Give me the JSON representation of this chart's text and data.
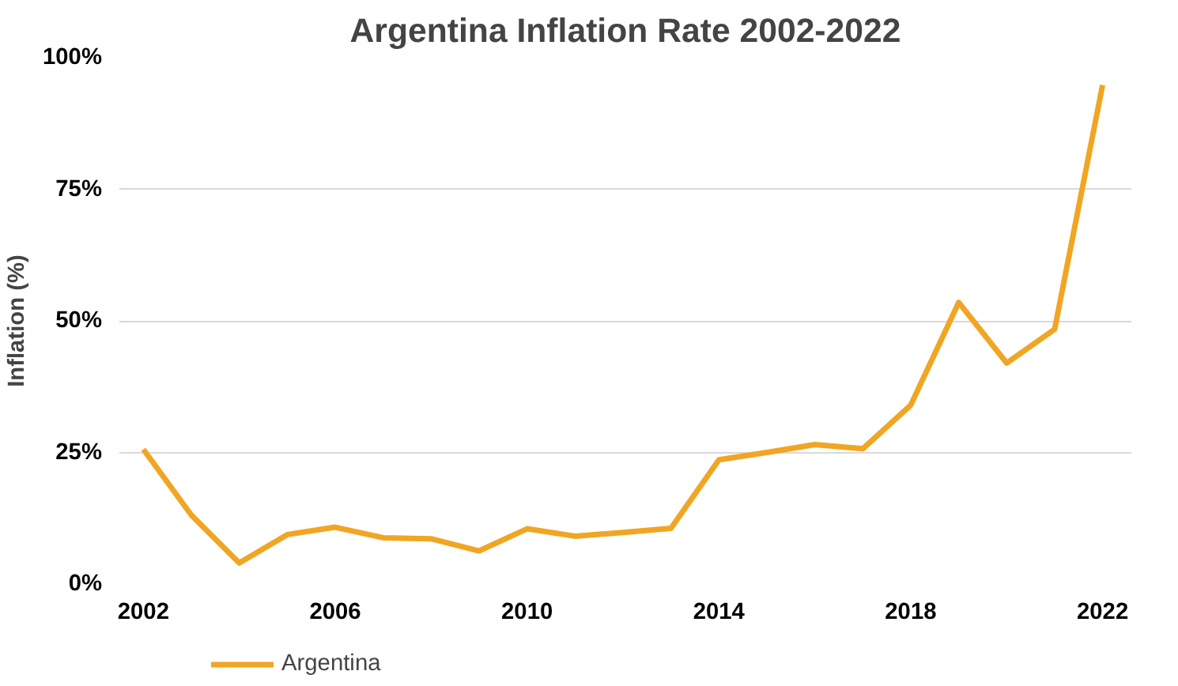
{
  "chart_data": {
    "type": "line",
    "title": "Argentina Inflation Rate 2002-2022",
    "ylabel": "Inflation (%)",
    "x": [
      2002,
      2003,
      2004,
      2005,
      2006,
      2007,
      2008,
      2009,
      2010,
      2011,
      2012,
      2013,
      2014,
      2015,
      2016,
      2017,
      2018,
      2019,
      2020,
      2021,
      2022
    ],
    "series": [
      {
        "name": "Argentina",
        "color": "#f0a623",
        "values": [
          25.6,
          13.1,
          4.0,
          9.4,
          10.8,
          8.8,
          8.6,
          6.3,
          10.5,
          9.1,
          9.8,
          10.6,
          23.6,
          25.0,
          26.5,
          25.7,
          34.0,
          53.5,
          42.0,
          48.4,
          94.8
        ]
      }
    ],
    "xlim": [
      2001.5,
      2022.6
    ],
    "xticks": [
      2002,
      2006,
      2010,
      2014,
      2018,
      2022
    ],
    "ylim": [
      0,
      100
    ],
    "yticks": [
      {
        "value": 0,
        "label": "0%"
      },
      {
        "value": 25,
        "label": "25%"
      },
      {
        "value": 50,
        "label": "50%"
      },
      {
        "value": 75,
        "label": "75%"
      },
      {
        "value": 100,
        "label": "100%"
      }
    ],
    "grid": "y",
    "legend": "bottom left",
    "marker": "none",
    "line_style": "solid"
  }
}
